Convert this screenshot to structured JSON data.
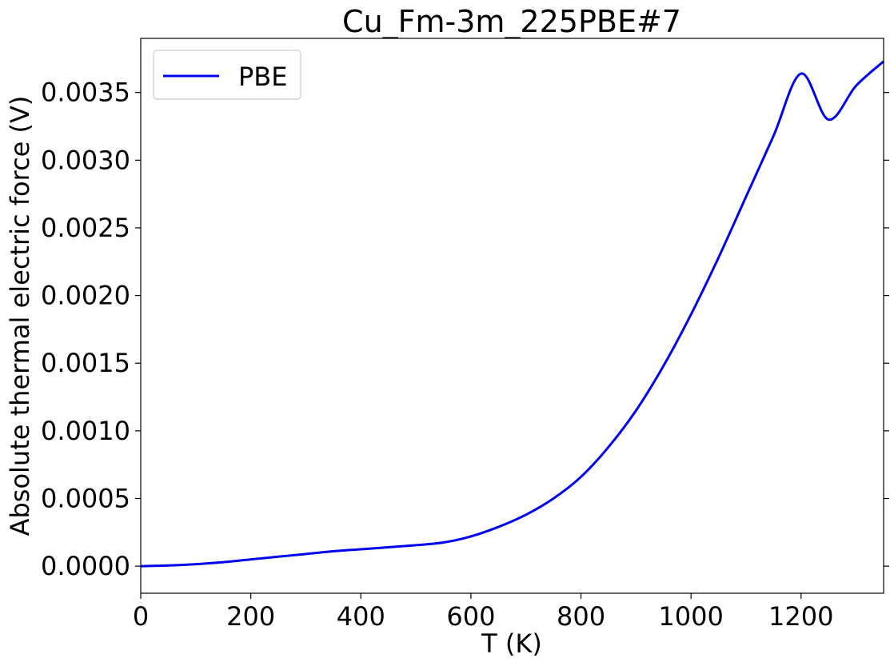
{
  "chart_data": {
    "type": "line",
    "title": "Cu_Fm-3m_225PBE#7",
    "xlabel": "T (K)",
    "ylabel": "Absolute thermal electric force (V)",
    "xlim": [
      0,
      1350
    ],
    "ylim": [
      -0.0002,
      0.0039
    ],
    "xticks": [
      0,
      200,
      400,
      600,
      800,
      1000,
      1200
    ],
    "xtick_labels": [
      "0",
      "200",
      "400",
      "600",
      "800",
      "1000",
      "1200"
    ],
    "yticks": [
      0.0,
      0.0005,
      0.001,
      0.0015,
      0.002,
      0.0025,
      0.003,
      0.0035
    ],
    "ytick_labels": [
      "0.0000",
      "0.0005",
      "0.0010",
      "0.0015",
      "0.0020",
      "0.0025",
      "0.0030",
      "0.0035"
    ],
    "grid": false,
    "legend_position": "top-left",
    "series": [
      {
        "name": "PBE",
        "color": "#0000ee",
        "x": [
          0,
          50,
          100,
          150,
          200,
          250,
          300,
          350,
          400,
          450,
          500,
          550,
          600,
          650,
          700,
          750,
          800,
          850,
          900,
          950,
          1000,
          1050,
          1100,
          1150,
          1200,
          1250,
          1300,
          1350
        ],
        "y": [
          0.0,
          5e-06,
          1.5e-05,
          3e-05,
          5e-05,
          7e-05,
          9e-05,
          0.00011,
          0.000125,
          0.00014,
          0.000155,
          0.000175,
          0.00022,
          0.00029,
          0.00038,
          0.0005,
          0.00066,
          0.00088,
          0.00115,
          0.00148,
          0.00186,
          0.00228,
          0.00273,
          0.00318,
          0.00364,
          0.0033,
          0.00355,
          0.00373
        ]
      }
    ]
  }
}
